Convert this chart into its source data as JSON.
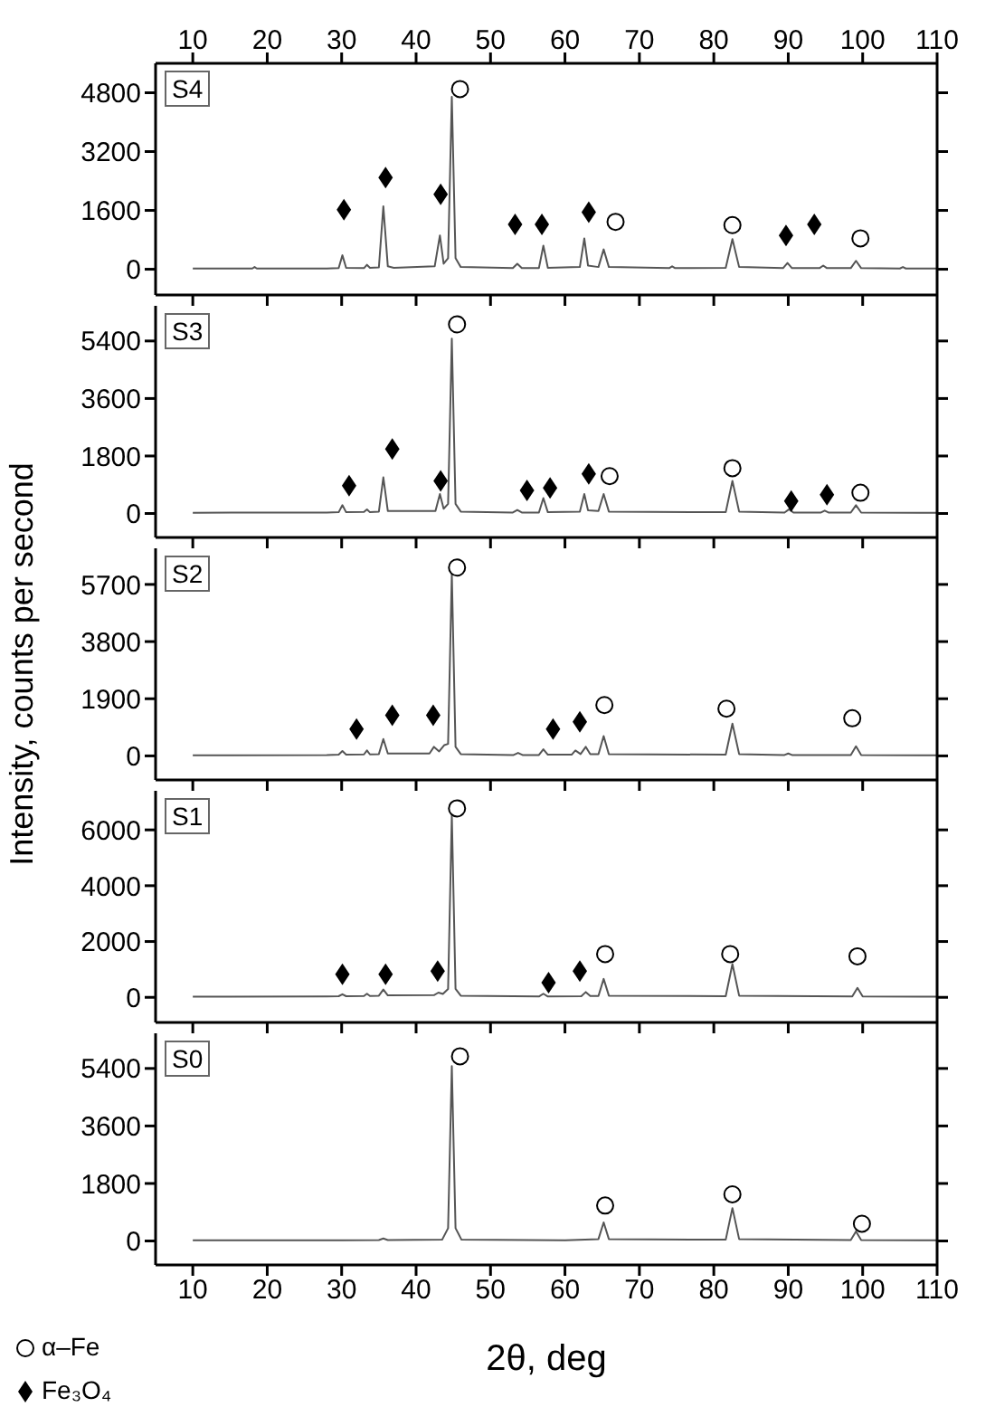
{
  "chart_data": [
    {
      "type": "line",
      "title": "S4",
      "legend": "bottom left",
      "xlim": [
        5,
        110
      ],
      "xticks": [
        10,
        20,
        30,
        40,
        50,
        60,
        70,
        80,
        90,
        100,
        110
      ],
      "x2lim": [
        5,
        110
      ],
      "x2ticks": [
        10,
        20,
        30,
        40,
        50,
        60,
        70,
        80,
        90,
        100,
        110
      ],
      "ylim": [
        -700,
        5600
      ],
      "yticks": [
        0,
        1600,
        3200,
        4800
      ],
      "tick_labels": "y",
      "series": [
        {
          "type": "line",
          "color": "#555555",
          "x": [
            10,
            18,
            18.3,
            18.6,
            28,
            29.6,
            30.1,
            30.6,
            33,
            33.4,
            33.8,
            35.0,
            35.6,
            36.2,
            37,
            42.5,
            43.2,
            43.7,
            44.3,
            44.8,
            45.3,
            46,
            53,
            53.6,
            54.2,
            56.5,
            57.1,
            57.7,
            62,
            62.6,
            63.1,
            64.5,
            65.2,
            65.9,
            74,
            74.4,
            74.8,
            81.6,
            82.5,
            83.4,
            89.3,
            89.9,
            90.5,
            94.2,
            94.7,
            95.2,
            98.4,
            99.1,
            99.8,
            105,
            105.4,
            105.8,
            110
          ],
          "values": [
            20,
            20,
            60,
            20,
            20,
            30,
            380,
            40,
            30,
            120,
            40,
            50,
            1710,
            80,
            40,
            80,
            920,
            150,
            300,
            4690,
            300,
            60,
            30,
            150,
            30,
            30,
            640,
            40,
            60,
            840,
            100,
            60,
            540,
            60,
            30,
            80,
            30,
            40,
            820,
            60,
            30,
            170,
            30,
            30,
            100,
            30,
            30,
            230,
            30,
            20,
            60,
            20,
            20
          ]
        },
        {
          "type": "scatter",
          "name": "α–Fe",
          "color": "#000000",
          "marker": "circle",
          "x": [
            45.9,
            66.8,
            82.5,
            99.7
          ],
          "values": [
            4900,
            1290,
            1200,
            840
          ]
        },
        {
          "type": "scatter",
          "name": "Fe₃O₄",
          "color": "#000000",
          "marker": "diamond",
          "x": [
            30.3,
            35.9,
            43.3,
            53.3,
            56.9,
            63.2,
            89.7,
            93.5
          ],
          "values": [
            1620,
            2490,
            2040,
            1220,
            1220,
            1550,
            920,
            1220
          ]
        }
      ]
    },
    {
      "type": "line",
      "title": "S3",
      "xlim": [
        5,
        110
      ],
      "xticks": [
        10,
        20,
        30,
        40,
        50,
        60,
        70,
        80,
        90,
        100,
        110
      ],
      "ylim": [
        -750,
        6500
      ],
      "yticks": [
        0,
        1800,
        3600,
        5400
      ],
      "tick_labels": "y",
      "series": [
        {
          "type": "line",
          "color": "#555555",
          "x": [
            10,
            18,
            28,
            29.6,
            30.1,
            30.6,
            33,
            33.4,
            33.8,
            35.0,
            35.6,
            36.2,
            42.6,
            43.2,
            43.7,
            44.3,
            44.8,
            45.3,
            46,
            53,
            53.6,
            54.2,
            56.5,
            57.1,
            57.7,
            62,
            62.6,
            63.1,
            64.5,
            65.2,
            65.9,
            81.6,
            82.5,
            83.4,
            89.5,
            90.1,
            90.7,
            94.4,
            94.9,
            95.4,
            98.4,
            99.1,
            99.8,
            110
          ],
          "values": [
            20,
            30,
            30,
            40,
            260,
            40,
            50,
            130,
            40,
            60,
            1130,
            80,
            80,
            610,
            150,
            300,
            5470,
            300,
            60,
            30,
            110,
            30,
            30,
            480,
            40,
            60,
            610,
            100,
            80,
            610,
            60,
            40,
            1020,
            60,
            30,
            130,
            30,
            30,
            90,
            30,
            30,
            260,
            30,
            20
          ]
        },
        {
          "type": "scatter",
          "color": "#000000",
          "marker": "circle",
          "x": [
            45.5,
            66.0,
            82.5,
            99.7
          ],
          "values": [
            5920,
            1170,
            1420,
            650
          ]
        },
        {
          "type": "scatter",
          "color": "#000000",
          "marker": "diamond",
          "x": [
            31.0,
            36.8,
            43.3,
            54.9,
            58.0,
            63.2,
            90.4,
            95.2
          ],
          "values": [
            870,
            2020,
            1020,
            720,
            800,
            1240,
            390,
            590
          ]
        }
      ]
    },
    {
      "type": "line",
      "title": "S2",
      "ylabel": "Intensity, counts per second",
      "xlim": [
        5,
        110
      ],
      "xticks": [
        10,
        20,
        30,
        40,
        50,
        60,
        70,
        80,
        90,
        100,
        110
      ],
      "ylim": [
        -800,
        6900
      ],
      "yticks": [
        0,
        1900,
        3800,
        5700
      ],
      "tick_labels": "y",
      "series": [
        {
          "type": "line",
          "color": "#555555",
          "x": [
            10,
            28,
            29.6,
            30.1,
            30.6,
            33,
            33.4,
            33.8,
            35,
            35.6,
            36.2,
            41.8,
            42.4,
            43.1,
            43.8,
            44.3,
            44.8,
            45.3,
            46,
            53.1,
            53.7,
            54.3,
            56.5,
            57.1,
            57.7,
            60.9,
            61.4,
            62.1,
            62.8,
            63.4,
            64.5,
            65.2,
            65.9,
            81.6,
            82.5,
            83.4,
            89.5,
            90.0,
            90.5,
            98.4,
            99.1,
            99.8,
            110
          ],
          "values": [
            20,
            30,
            40,
            160,
            40,
            50,
            180,
            50,
            60,
            560,
            80,
            80,
            300,
            150,
            360,
            400,
            6050,
            300,
            60,
            30,
            100,
            30,
            30,
            220,
            40,
            40,
            180,
            60,
            300,
            60,
            60,
            660,
            60,
            40,
            1070,
            60,
            30,
            80,
            30,
            30,
            320,
            30,
            20
          ]
        },
        {
          "type": "scatter",
          "color": "#000000",
          "marker": "circle",
          "x": [
            45.5,
            65.3,
            81.7,
            98.6
          ],
          "values": [
            6260,
            1690,
            1570,
            1250
          ]
        },
        {
          "type": "scatter",
          "color": "#000000",
          "marker": "diamond",
          "x": [
            32.0,
            36.8,
            42.3,
            58.4,
            62.0
          ],
          "values": [
            890,
            1350,
            1350,
            890,
            1130
          ]
        }
      ]
    },
    {
      "type": "line",
      "title": "S1",
      "xlim": [
        5,
        110
      ],
      "xticks": [
        10,
        20,
        30,
        40,
        50,
        60,
        70,
        80,
        90,
        100,
        110
      ],
      "ylim": [
        -900,
        7400
      ],
      "yticks": [
        0,
        2000,
        4000,
        6000
      ],
      "tick_labels": "y",
      "series": [
        {
          "type": "line",
          "color": "#555555",
          "x": [
            10,
            28,
            29.6,
            30.1,
            30.6,
            33,
            33.4,
            33.8,
            35,
            35.6,
            36.2,
            42.4,
            43.0,
            43.6,
            44.3,
            44.8,
            45.3,
            46,
            56.5,
            57.1,
            57.7,
            62.2,
            62.8,
            63.4,
            64.5,
            65.2,
            65.9,
            81.6,
            82.5,
            83.4,
            98.6,
            99.3,
            100,
            110
          ],
          "values": [
            20,
            30,
            40,
            110,
            40,
            50,
            130,
            50,
            60,
            280,
            70,
            80,
            170,
            120,
            300,
            6520,
            300,
            60,
            30,
            130,
            30,
            40,
            190,
            50,
            50,
            660,
            60,
            40,
            1190,
            60,
            30,
            340,
            30,
            20
          ]
        },
        {
          "type": "scatter",
          "color": "#000000",
          "marker": "circle",
          "x": [
            45.5,
            65.4,
            82.2,
            99.3
          ],
          "values": [
            6770,
            1550,
            1550,
            1470
          ]
        },
        {
          "type": "scatter",
          "color": "#000000",
          "marker": "diamond",
          "x": [
            30.1,
            35.9,
            42.9,
            57.8,
            62.0
          ],
          "values": [
            830,
            830,
            940,
            530,
            940
          ]
        }
      ]
    },
    {
      "type": "line",
      "title": "S0",
      "xlabel": "2θ, deg",
      "xlim": [
        5,
        110
      ],
      "xticks": [
        10,
        20,
        30,
        40,
        50,
        60,
        70,
        80,
        90,
        100,
        110
      ],
      "ylim": [
        -750,
        6500
      ],
      "yticks": [
        0,
        1800,
        3600,
        5400
      ],
      "series": [
        {
          "type": "line",
          "color": "#555555",
          "x": [
            10,
            30,
            35,
            35.6,
            36.2,
            43.5,
            44.3,
            44.8,
            45.3,
            46.1,
            60,
            64.5,
            65.2,
            65.9,
            81.6,
            82.5,
            83.4,
            98.4,
            99.1,
            99.8,
            110
          ],
          "values": [
            20,
            20,
            30,
            80,
            30,
            40,
            400,
            5470,
            400,
            40,
            20,
            60,
            580,
            60,
            40,
            1030,
            60,
            30,
            300,
            30,
            20
          ]
        },
        {
          "type": "scatter",
          "color": "#000000",
          "marker": "circle",
          "x": [
            45.9,
            65.4,
            82.5,
            99.9
          ],
          "values": [
            5780,
            1110,
            1460,
            540
          ]
        }
      ]
    }
  ]
}
